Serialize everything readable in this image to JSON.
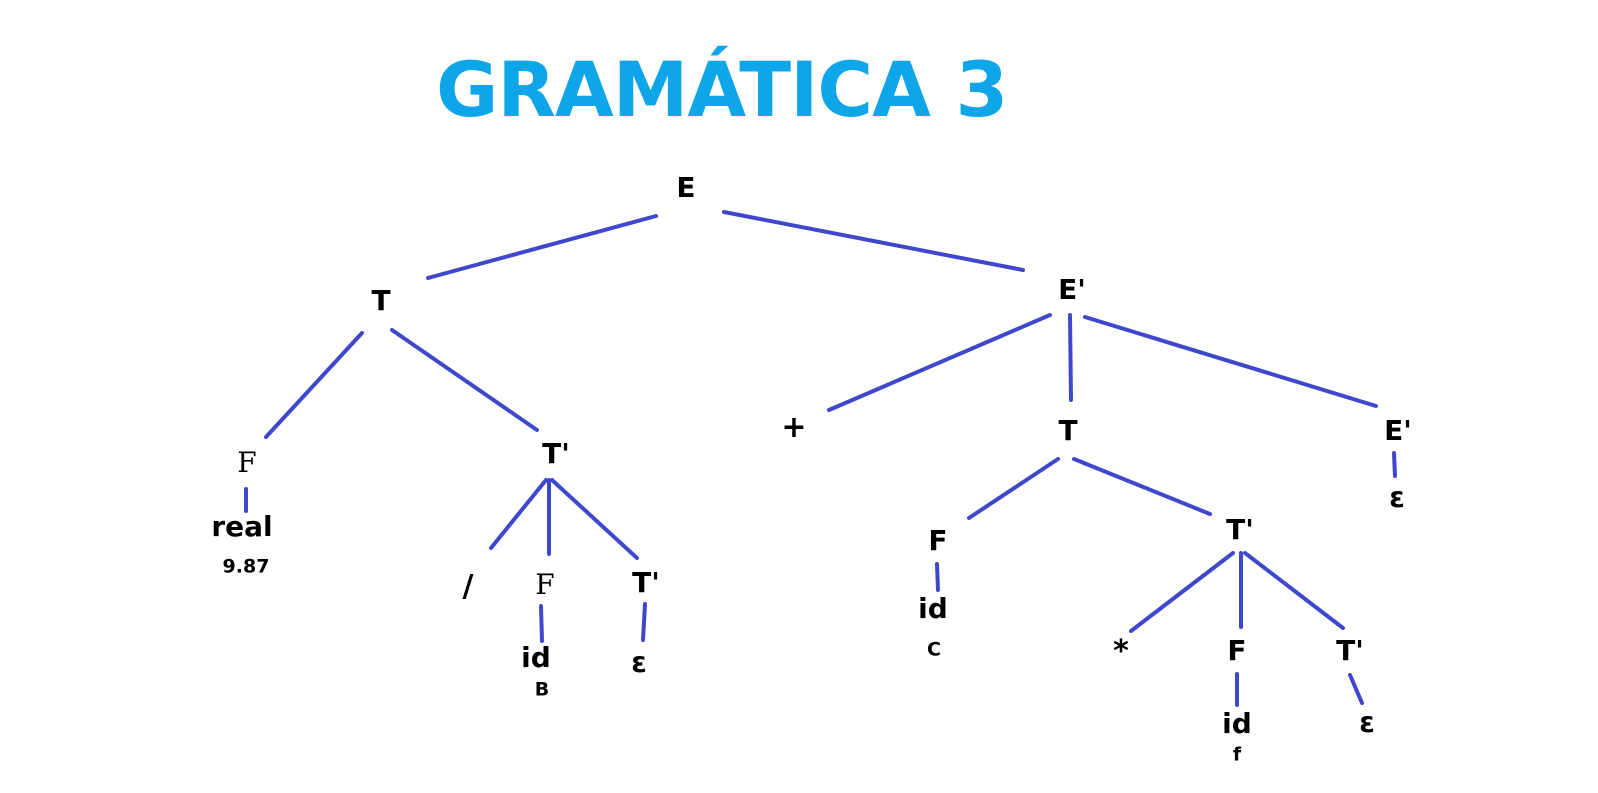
{
  "title": "GRAMÁTICA 3",
  "colors": {
    "title": "#0ea5e9",
    "edge": "#3f48cc",
    "text": "#000000",
    "background": "#ffffff"
  },
  "nodes": {
    "root_E": "E",
    "T1": "T",
    "E_prime_1": "E'",
    "F1": "F",
    "real": "real",
    "real_value": "9.87",
    "T_prime_1": "T'",
    "slash": "/",
    "F2": "F",
    "id1": "id",
    "id1_value": "B",
    "T_prime_2": "T'",
    "eps1": "ε",
    "plus": "+",
    "T2": "T",
    "E_prime_2": "E'",
    "eps2": "ε",
    "F3": "F",
    "id2": "id",
    "id2_value": "C",
    "T_prime_3": "T'",
    "star": "*",
    "F4": "F",
    "id3": "id",
    "id3_value": "f",
    "T_prime_4": "T'",
    "eps3": "ε"
  },
  "edges": [
    [
      "root_E",
      "T1"
    ],
    [
      "root_E",
      "E_prime_1"
    ],
    [
      "T1",
      "F1"
    ],
    [
      "T1",
      "T_prime_1"
    ],
    [
      "F1",
      "real"
    ],
    [
      "T_prime_1",
      "slash"
    ],
    [
      "T_prime_1",
      "F2"
    ],
    [
      "T_prime_1",
      "T_prime_2"
    ],
    [
      "F2",
      "id1"
    ],
    [
      "T_prime_2",
      "eps1"
    ],
    [
      "E_prime_1",
      "plus"
    ],
    [
      "E_prime_1",
      "T2"
    ],
    [
      "E_prime_1",
      "E_prime_2"
    ],
    [
      "E_prime_2",
      "eps2"
    ],
    [
      "T2",
      "F3"
    ],
    [
      "T2",
      "T_prime_3"
    ],
    [
      "F3",
      "id2"
    ],
    [
      "T_prime_3",
      "star"
    ],
    [
      "T_prime_3",
      "F4"
    ],
    [
      "T_prime_3",
      "T_prime_4"
    ],
    [
      "F4",
      "id3"
    ],
    [
      "T_prime_4",
      "eps3"
    ]
  ]
}
